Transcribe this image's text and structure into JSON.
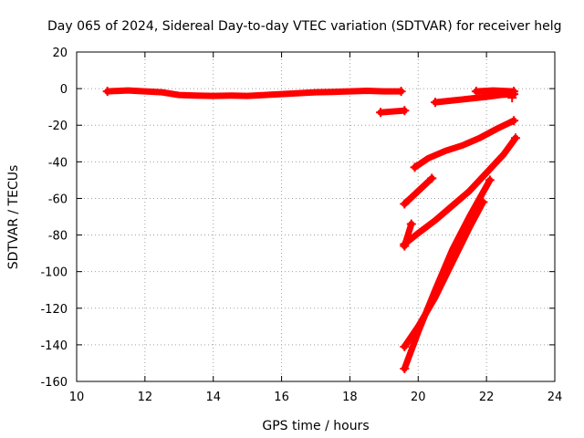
{
  "chart_data": {
    "type": "scatter",
    "title": "Day 065 of 2024, Sidereal Day-to-day VTEC variation (SDTVAR) for receiver helg",
    "xlabel": "GPS time / hours",
    "ylabel": "SDTVAR / TECUs",
    "xlim": [
      10,
      24
    ],
    "ylim": [
      -160,
      20
    ],
    "xticks": [
      10,
      12,
      14,
      16,
      18,
      20,
      22,
      24
    ],
    "yticks": [
      20,
      0,
      -20,
      -40,
      -60,
      -80,
      -100,
      -120,
      -140,
      -160
    ],
    "xtick_labels": [
      "10",
      "12",
      "14",
      "16",
      "18",
      "20",
      "22",
      "24"
    ],
    "ytick_labels": [
      "20",
      "0",
      "-20",
      "-40",
      "-60",
      "-80",
      "-100",
      "-120",
      "-140",
      "-160"
    ],
    "grid": true,
    "color": "#ff0000",
    "series": [
      {
        "x": [
          10.9,
          11.5,
          12.0,
          12.5,
          13.0,
          13.5,
          14.0,
          14.5,
          15.0,
          15.5,
          16.0,
          16.5,
          17.0,
          17.5,
          18.0,
          18.5,
          19.0,
          19.5
        ],
        "y": [
          -1.5,
          -1.0,
          -1.5,
          -2.0,
          -3.5,
          -3.8,
          -4.0,
          -3.8,
          -4.0,
          -3.5,
          -3.0,
          -2.5,
          -2.0,
          -1.8,
          -1.5,
          -1.2,
          -1.5,
          -1.5
        ]
      },
      {
        "x": [
          18.9,
          19.6
        ],
        "y": [
          -13,
          -12
        ]
      },
      {
        "x": [
          20.5,
          21.0,
          21.5,
          22.0,
          22.4,
          22.8
        ],
        "y": [
          -7.5,
          -6.5,
          -5.5,
          -4.5,
          -3.5,
          -3.0
        ]
      },
      {
        "x": [
          21.7,
          22.2,
          22.8
        ],
        "y": [
          -1.5,
          -1.0,
          -1.5
        ]
      },
      {
        "x": [
          22.75
        ],
        "y": [
          -5
        ]
      },
      {
        "x": [
          19.9,
          20.3,
          20.8,
          21.3,
          21.8,
          22.3,
          22.8
        ],
        "y": [
          -43,
          -38,
          -34,
          -31,
          -27,
          -22,
          -17.5
        ]
      },
      {
        "x": [
          19.6,
          20.0,
          20.4
        ],
        "y": [
          -63,
          -56,
          -49
        ]
      },
      {
        "x": [
          19.6,
          20.0,
          20.5,
          21.0,
          21.5,
          22.0,
          22.5,
          22.85
        ],
        "y": [
          -85,
          -79,
          -72,
          -64,
          -56,
          -46,
          -36,
          -27
        ]
      },
      {
        "x": [
          19.8,
          19.6
        ],
        "y": [
          -74,
          -86
        ]
      },
      {
        "x": [
          19.6,
          20.0,
          20.5,
          21.0,
          21.5,
          21.9
        ],
        "y": [
          -141,
          -130,
          -114,
          -95,
          -76,
          -62
        ]
      },
      {
        "x": [
          19.6,
          20.0,
          20.5,
          21.0,
          21.5,
          22.1
        ],
        "y": [
          -153,
          -133,
          -110,
          -88,
          -70,
          -50
        ]
      }
    ]
  }
}
